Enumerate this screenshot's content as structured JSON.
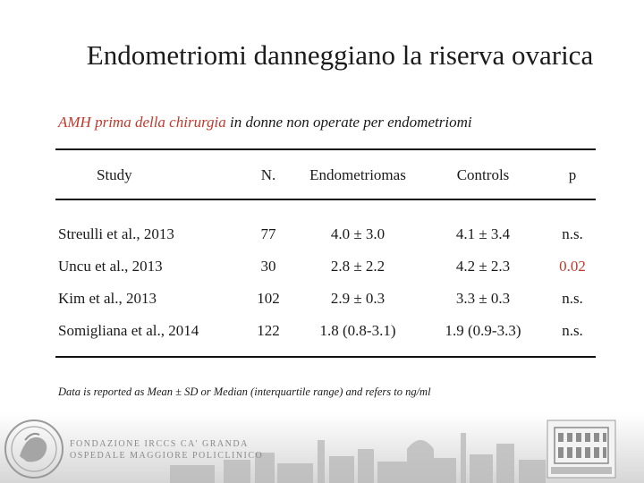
{
  "slide": {
    "title": "Endometriomi danneggiano la riserva ovarica",
    "subtitle_red": "AMH prima della chirurgia",
    "subtitle_rest": " in donne non operate per endometriomi",
    "footnote": "Data is reported as Mean ± SD or Median (interquartile range) and refers to ng/ml"
  },
  "table": {
    "headers": [
      "Study",
      "N.",
      "Endometriomas",
      "Controls",
      "p"
    ],
    "rows": [
      {
        "study": "Streulli et al., 2013",
        "n": "77",
        "endometriomas": "4.0 ± 3.0",
        "controls": "4.1 ± 3.4",
        "p": "n.s.",
        "significant": false
      },
      {
        "study": "Uncu et al., 2013",
        "n": "30",
        "endometriomas": "2.8 ± 2.2",
        "controls": "4.2 ± 2.3",
        "p": "0.02",
        "significant": true
      },
      {
        "study": "Kim et al., 2013",
        "n": "102",
        "endometriomas": "2.9 ± 0.3",
        "controls": "3.3 ± 0.3",
        "p": "n.s.",
        "significant": false
      },
      {
        "study": "Somigliana et al., 2014",
        "n": "122",
        "endometriomas": "1.8 (0.8-3.1)",
        "controls": "1.9 (0.9-3.3)",
        "p": "n.s.",
        "significant": false
      }
    ]
  },
  "footer": {
    "foundation_line1": "FONDAZIONE IRCCS CA' GRANDA",
    "foundation_line2": "OSPEDALE MAGGIORE POLICLINICO"
  },
  "colors": {
    "accent_red": "#c0392b",
    "text": "#1a1a1a"
  },
  "icons": [
    "seal-logo-icon",
    "hospital-building-icon",
    "city-skyline"
  ]
}
